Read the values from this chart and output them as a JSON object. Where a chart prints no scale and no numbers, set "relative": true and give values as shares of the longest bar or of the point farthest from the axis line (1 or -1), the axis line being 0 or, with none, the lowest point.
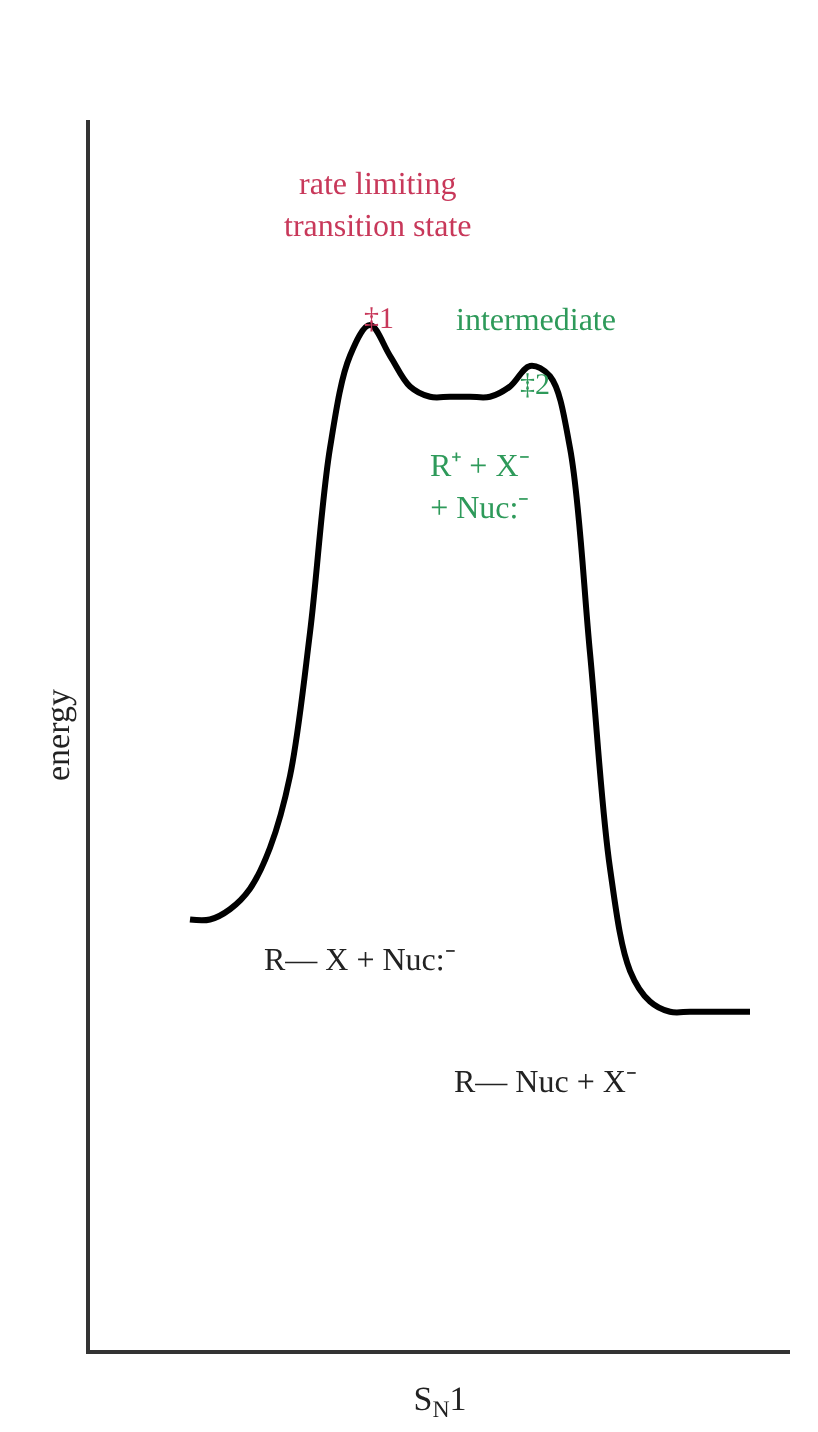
{
  "chart_data": {
    "type": "line",
    "relative": true,
    "color": "#000000",
    "xlabel": "S$_{N}$1",
    "ylabel": "energy",
    "categories": [
      null,
      null,
      null,
      null,
      null,
      null,
      null,
      null,
      null,
      null,
      null,
      null,
      null,
      null,
      null,
      null,
      null,
      null,
      null,
      null,
      null,
      null,
      null,
      null,
      null,
      null,
      null,
      null,
      null
    ],
    "values": [
      0.42,
      0.42,
      0.43,
      0.45,
      0.49,
      0.56,
      0.7,
      0.88,
      0.97,
      1.0,
      0.97,
      0.94,
      0.93,
      0.93,
      0.93,
      0.93,
      0.94,
      0.96,
      0.95,
      0.88,
      0.68,
      0.47,
      0.37,
      0.34,
      0.33,
      0.33,
      0.33,
      0.33,
      0.33
    ],
    "annotations": [
      "rate limiting\ntransition state",
      "intermediate",
      "‡1",
      "‡2",
      "R— X + Nuc:⁻",
      "R⁺ + X⁻\n+ Nuc:⁻",
      "R— Nuc + X⁻"
    ],
    "legend": false
  }
}
